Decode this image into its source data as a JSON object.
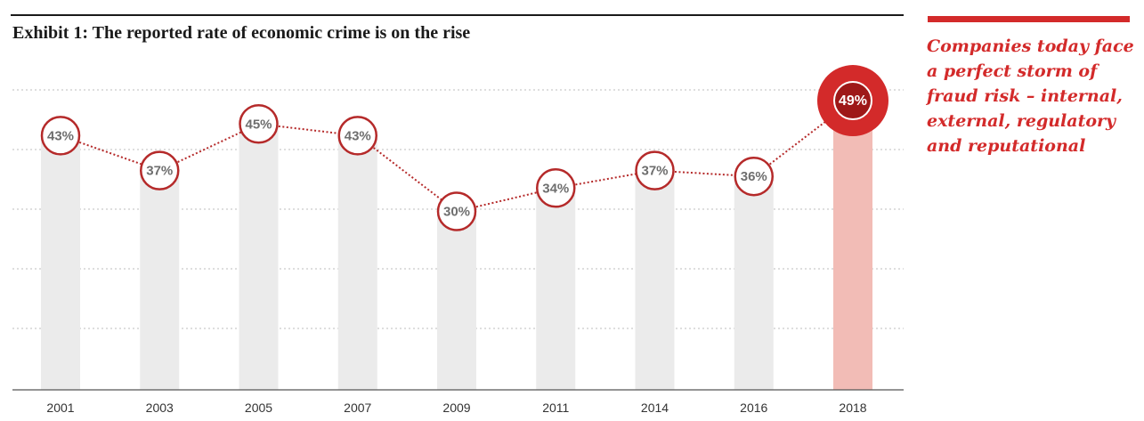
{
  "title": "Exhibit 1: The reported rate of economic crime is on the rise",
  "callout": "Companies today face a perfect storm of fraud risk – internal, external, regulatory and reputational",
  "colors": {
    "bar": "#ebebeb",
    "bar_highlight": "#f2bcb6",
    "marker_stroke": "#b52a2a",
    "highlight_outer": "#d32a2a",
    "highlight_inner": "#9e1818",
    "line": "#b52a2a",
    "accent": "#d32a2a"
  },
  "chart_data": {
    "type": "line",
    "categories": [
      "2001",
      "2003",
      "2005",
      "2007",
      "2009",
      "2011",
      "2014",
      "2016",
      "2018"
    ],
    "values": [
      43,
      37,
      45,
      43,
      30,
      34,
      37,
      36,
      49
    ],
    "labels": [
      "43%",
      "37%",
      "45%",
      "43%",
      "30%",
      "34%",
      "37%",
      "36%",
      "49%"
    ],
    "highlight_index": 8,
    "bars": true,
    "ylim": [
      0,
      50
    ],
    "grid": true,
    "title": "Exhibit 1: The reported rate of economic crime is on the rise"
  }
}
